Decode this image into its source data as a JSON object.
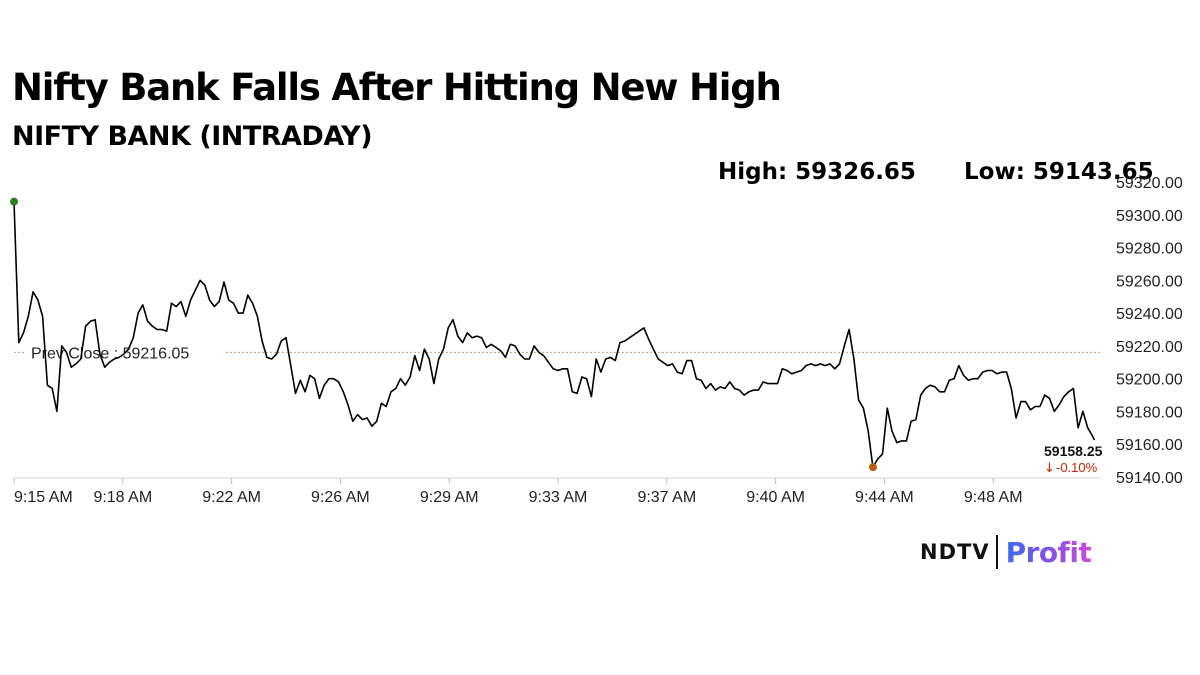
{
  "headline": "Nifty Bank Falls After Hitting New High",
  "subtitle": "NIFTY BANK (INTRADAY)",
  "stats": {
    "high": "High: 59326.65",
    "low": "Low: 59143.65"
  },
  "brand": {
    "ndtv": "NDTV",
    "profit": "Profit"
  },
  "colors": {
    "line": "#000000",
    "prev_close_line": "#c8a37a",
    "start_marker": "#2e7d1f",
    "low_marker": "#b85a12",
    "end_marker": "#2233cc",
    "change_negative": "#cc2200"
  },
  "chart_data": {
    "type": "line",
    "title": "NIFTY BANK (INTRADAY)",
    "y_axis_position": "right",
    "ylim": [
      59140,
      59320
    ],
    "y_ticks": [
      "59320.00",
      "59300.00",
      "59280.00",
      "59260.00",
      "59240.00",
      "59220.00",
      "59200.00",
      "59180.00",
      "59160.00",
      "59140.00"
    ],
    "x_ticks": [
      "9:15 AM",
      "9:18 AM",
      "9:22 AM",
      "9:26 AM",
      "9:29 AM",
      "9:33 AM",
      "9:37 AM",
      "9:40 AM",
      "9:44 AM",
      "9:48 AM"
    ],
    "reference_line": {
      "label": "Prev Close : 59216.05",
      "value": 59216.05
    },
    "last_value": {
      "label": "59158.25",
      "change": "-0.10%"
    },
    "series": [
      {
        "values": [
          59308,
          59222,
          59228,
          59238,
          59253,
          59248,
          59238,
          59196,
          59194,
          59180,
          59220,
          59216,
          59207,
          59209,
          59212,
          59232,
          59235,
          59236,
          59215,
          59207,
          59210,
          59212,
          59213,
          59215,
          59218,
          59225,
          59240,
          59245,
          59235,
          59232,
          59230,
          59230,
          59229,
          59246,
          59244,
          59247,
          59238,
          59248,
          59254,
          59260,
          59257,
          59248,
          59244,
          59247,
          59259,
          59248,
          59246,
          59240,
          59240,
          59251,
          59246,
          59238,
          59223,
          59213,
          59212,
          59215,
          59223,
          59225,
          59208,
          59191,
          59199,
          59192,
          59202,
          59200,
          59188,
          59196,
          59200,
          59200,
          59198,
          59192,
          59184,
          59174,
          59178,
          59175,
          59176,
          59171,
          59174,
          59185,
          59183,
          59192,
          59194,
          59200,
          59196,
          59201,
          59214,
          59205,
          59218,
          59212,
          59197,
          59212,
          59218,
          59231,
          59236,
          59226,
          59222,
          59228,
          59225,
          59226,
          59225,
          59219,
          59221,
          59219,
          59217,
          59213,
          59221,
          59220,
          59215,
          59212,
          59212,
          59220,
          59216,
          59214,
          59210,
          59206,
          59205,
          59206,
          59206,
          59192,
          59191,
          59201,
          59200,
          59189,
          59212,
          59204,
          59212,
          59213,
          59211,
          59222,
          59223,
          59225,
          59227,
          59229,
          59231,
          59224,
          59218,
          59212,
          59210,
          59208,
          59209,
          59204,
          59203,
          59211,
          59211,
          59200,
          59199,
          59194,
          59197,
          59193,
          59195,
          59194,
          59198,
          59194,
          59193,
          59190,
          59192,
          59193,
          59193,
          59198,
          59197,
          59197,
          59197,
          59206,
          59205,
          59203,
          59204,
          59205,
          59208,
          59209,
          59208,
          59209,
          59208,
          59209,
          59206,
          59209,
          59220,
          59230,
          59212,
          59187,
          59182,
          59168,
          59146,
          59151,
          59154,
          59182,
          59168,
          59161,
          59162,
          59162,
          59174,
          59175,
          59190,
          59194,
          59196,
          59195,
          59192,
          59192,
          59199,
          59200,
          59208,
          59202,
          59199,
          59200,
          59200,
          59204,
          59205,
          59205,
          59203,
          59204,
          59204,
          59194,
          59176,
          59186,
          59186,
          59181,
          59183,
          59183,
          59190,
          59188,
          59180,
          59184,
          59189,
          59192,
          59194,
          59170,
          59180,
          59170,
          59165,
          59159,
          59158.25
        ]
      }
    ]
  }
}
